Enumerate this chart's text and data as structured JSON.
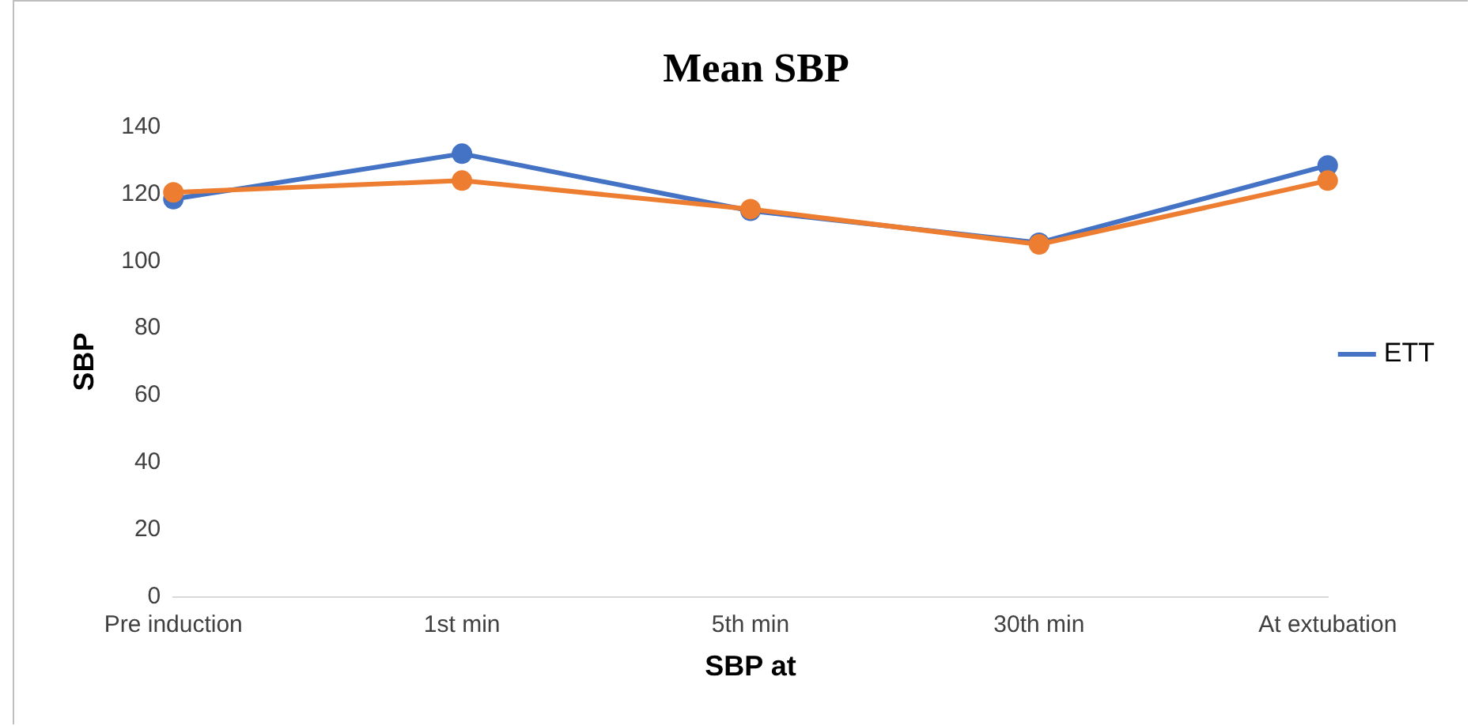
{
  "chart_data": {
    "type": "line",
    "title": "Mean SBP",
    "xlabel": "SBP at",
    "ylabel": "SBP",
    "categories": [
      "Pre induction",
      "1st min",
      "5th min",
      "30th min",
      "At extubation"
    ],
    "series": [
      {
        "name": "ETT",
        "color": "#4472c4",
        "values": [
          118.5,
          132,
          115,
          105.5,
          128.5
        ]
      },
      {
        "color": "#ed7d31",
        "values": [
          120.5,
          124,
          115.5,
          105,
          124
        ]
      }
    ],
    "ylim": [
      0,
      140
    ],
    "yticks": [
      0,
      20,
      40,
      60,
      80,
      100,
      120,
      140
    ],
    "grid": false,
    "legend": "right",
    "marker": "circle",
    "line_style": "solid"
  }
}
